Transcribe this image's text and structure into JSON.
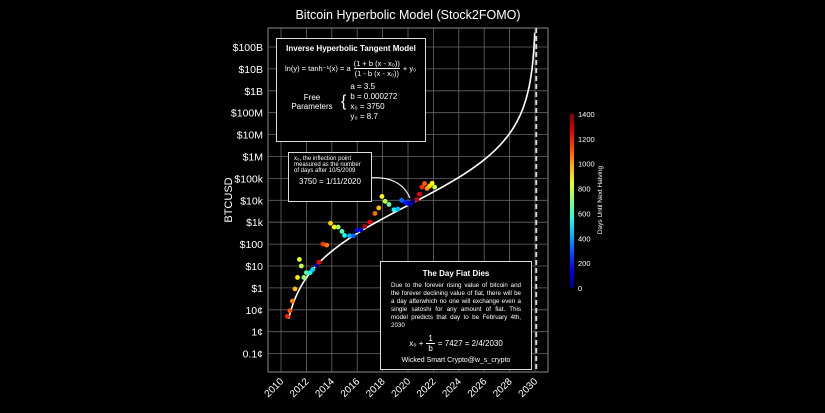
{
  "chart_data": {
    "type": "scatter",
    "title": "Bitcoin Hyperbolic Model (Stock2FOMO)",
    "ylabel": "BTCUSD",
    "yscale": "log",
    "ylim": [
      0.0005,
      300000000000
    ],
    "xlim": [
      2009.0,
      2031.0
    ],
    "grid": true,
    "x_ticks": [
      "2010",
      "2012",
      "2014",
      "2016",
      "2018",
      "2020",
      "2022",
      "2024",
      "2026",
      "2028",
      "2030"
    ],
    "y_ticks": [
      {
        "v": 100000000000.0,
        "l": "$100B"
      },
      {
        "v": 10000000000.0,
        "l": "$10B"
      },
      {
        "v": 1000000000.0,
        "l": "$1B"
      },
      {
        "v": 100000000.0,
        "l": "$100M"
      },
      {
        "v": 10000000.0,
        "l": "$10M"
      },
      {
        "v": 1000000.0,
        "l": "$1M"
      },
      {
        "v": 100000.0,
        "l": "$100k"
      },
      {
        "v": 10000.0,
        "l": "$10k"
      },
      {
        "v": 1000.0,
        "l": "$1k"
      },
      {
        "v": 100,
        "l": "$100"
      },
      {
        "v": 10,
        "l": "$10"
      },
      {
        "v": 1,
        "l": "$1"
      },
      {
        "v": 0.1,
        "l": "10¢"
      },
      {
        "v": 0.01,
        "l": "1¢"
      },
      {
        "v": 0.001,
        "l": "0.1¢"
      }
    ],
    "colorbar": {
      "label": "Days Until Next Halving",
      "range": [
        0,
        1400
      ],
      "ticks": [
        "0",
        "200",
        "400",
        "600",
        "800",
        "1000",
        "1200",
        "1400"
      ],
      "colormap": "jet"
    },
    "model": {
      "a": 3.5,
      "b": 0.000272,
      "x0": 3750,
      "y0": 8.7,
      "epoch": "10/5/2009"
    },
    "dashed_line_x": 2030.1,
    "points": [
      [
        2010.5,
        0.05,
        1190
      ],
      [
        2010.7,
        0.09,
        1110
      ],
      [
        2010.9,
        0.25,
        1050
      ],
      [
        2011.1,
        0.9,
        970
      ],
      [
        2011.3,
        3,
        900
      ],
      [
        2011.45,
        20,
        840
      ],
      [
        2011.6,
        10,
        790
      ],
      [
        2011.8,
        3,
        720
      ],
      [
        2012.0,
        5,
        650
      ],
      [
        2012.3,
        5,
        540
      ],
      [
        2012.5,
        7,
        470
      ],
      [
        2012.8,
        11,
        60
      ],
      [
        2013.0,
        15,
        1230
      ],
      [
        2013.3,
        100,
        1150
      ],
      [
        2013.6,
        90,
        1060
      ],
      [
        2013.9,
        900,
        940
      ],
      [
        2014.2,
        600,
        870
      ],
      [
        2014.5,
        600,
        740
      ],
      [
        2014.8,
        380,
        630
      ],
      [
        2015.0,
        250,
        550
      ],
      [
        2015.4,
        240,
        420
      ],
      [
        2015.7,
        240,
        300
      ],
      [
        2016.0,
        420,
        190
      ],
      [
        2016.3,
        450,
        90
      ],
      [
        2016.6,
        650,
        1330
      ],
      [
        2017.0,
        1000,
        1220
      ],
      [
        2017.4,
        2500,
        1070
      ],
      [
        2017.7,
        4500,
        960
      ],
      [
        2017.95,
        15000,
        880
      ],
      [
        2018.2,
        9000,
        780
      ],
      [
        2018.5,
        6500,
        670
      ],
      [
        2018.9,
        3700,
        530
      ],
      [
        2019.2,
        4000,
        430
      ],
      [
        2019.5,
        10000,
        320
      ],
      [
        2019.8,
        8000,
        210
      ],
      [
        2020.0,
        7200,
        130
      ],
      [
        2020.2,
        6500,
        60
      ],
      [
        2020.4,
        9000,
        0
      ],
      [
        2020.7,
        11000,
        1300
      ],
      [
        2020.9,
        19000,
        1230
      ],
      [
        2021.1,
        40000,
        1160
      ],
      [
        2021.3,
        58000,
        1100
      ],
      [
        2021.5,
        35000,
        1010
      ],
      [
        2021.7,
        45000,
        940
      ],
      [
        2021.9,
        60000,
        880
      ],
      [
        2022.1,
        40000,
        800
      ]
    ]
  },
  "model_box": {
    "title": "Inverse Hyperbolic Tangent Model",
    "eq_left": "ln(y) = tanh⁻¹(x) = a",
    "eq_num": "(1 + b (x - x₀))",
    "eq_den": "(1 - b (x - x₀))",
    "eq_right": "+ y₀",
    "params_label": "Free Parameters",
    "params": [
      "a = 3.5",
      "b = 0.000272",
      "x₀ = 3750",
      "y₀ = 8.7"
    ]
  },
  "inflection_box": {
    "text": "x₀, the inflection point measured as the number of days after 10/5/2009",
    "eq": "3750 = 1/11/2020"
  },
  "fiat_box": {
    "title": "The Day Fiat Dies",
    "text": "Due to the forever rising value of bitcoin and the forever declining value of fiat, there will be a day afterwhich no one will exchange even a single satoshi for any amount of fiat. This model predicts that day to be February 4th, 2030",
    "eq_left": "x₀ +",
    "eq_num": "1",
    "eq_den": "b",
    "eq_right": "= 7427 = 2/4/2030",
    "credit": "Wicked Smart Crypto@w_s_crypto"
  }
}
